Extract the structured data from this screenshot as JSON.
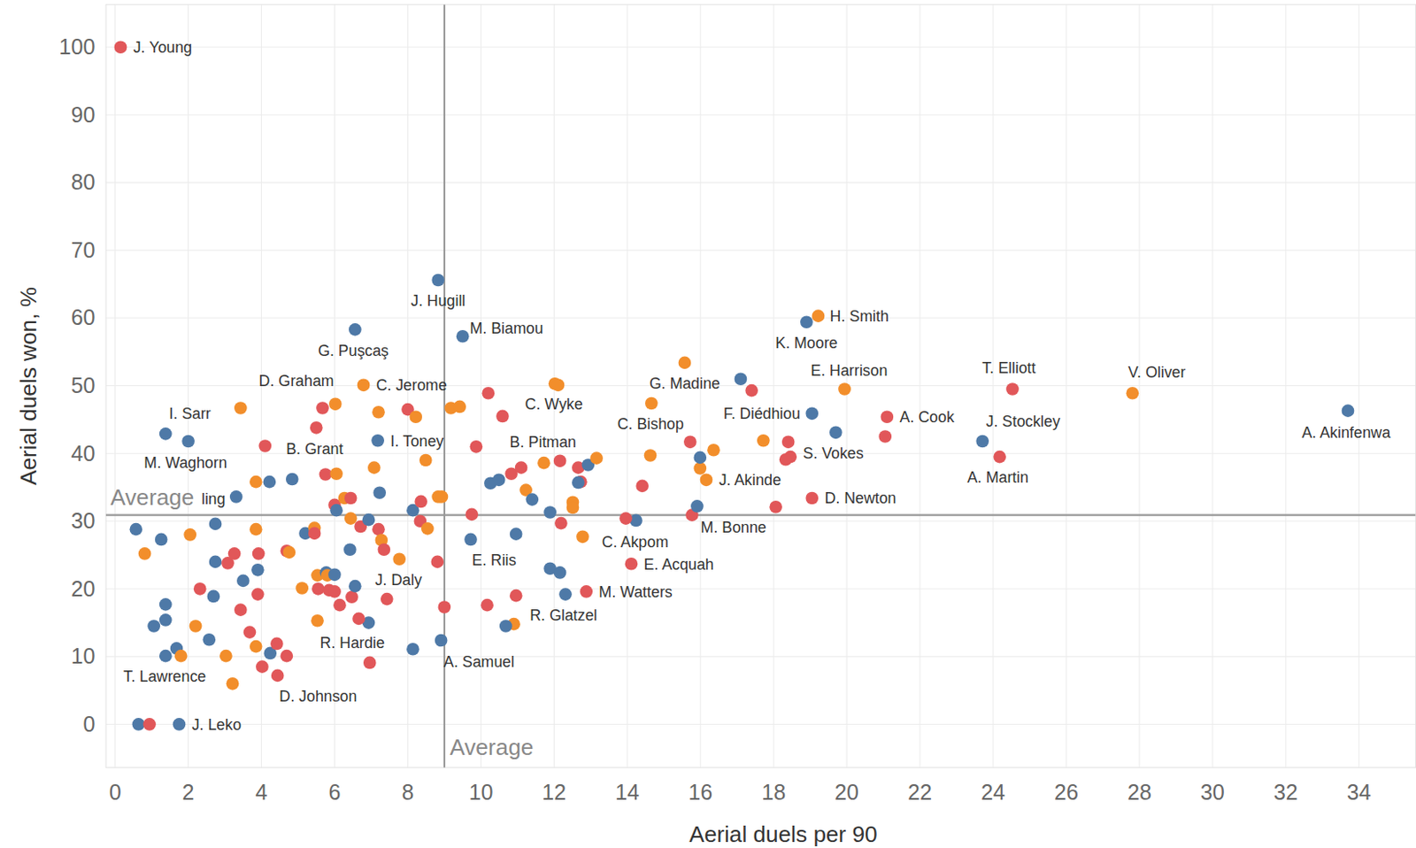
{
  "chart_data": {
    "type": "scatter",
    "x_label": "Aerial duels per 90",
    "y_label": "Aerial duels won, %",
    "xlim": [
      -0.25,
      35.55
    ],
    "ylim": [
      -6.4,
      106.3
    ],
    "xticks": [
      0,
      2,
      4,
      6,
      8,
      10,
      12,
      14,
      16,
      18,
      20,
      22,
      24,
      26,
      28,
      30,
      32,
      34
    ],
    "yticks": [
      0,
      10,
      20,
      30,
      40,
      50,
      60,
      70,
      80,
      90,
      100
    ],
    "grid": true,
    "marker": "circle",
    "reference_lines": [
      {
        "axis": "x",
        "value": 9.0,
        "label": "Average"
      },
      {
        "axis": "y",
        "value": 30.9,
        "label": "Average"
      }
    ],
    "x": [
      0.15,
      8.83,
      9.5,
      6.56,
      19.22,
      18.9,
      15.57,
      19.94,
      24.53,
      27.81,
      33.7,
      19.05,
      21.1,
      23.71,
      24.18,
      18.46,
      19.05,
      16.16,
      15.77,
      14.24,
      14.11,
      12.88,
      10.9,
      8.91,
      9.72,
      12.02,
      14.66,
      11.72,
      7.18,
      6.79,
      5.67,
      5.75,
      1.38,
      2.0,
      3.31,
      7.77,
      6.93,
      4.44,
      1.38,
      1.75,
      0.57,
      0.81,
      1.26,
      1.38,
      1.38,
      1.06,
      1.68,
      1.8,
      0.64,
      0.94,
      2.05,
      2.32,
      2.69,
      2.2,
      2.57,
      2.74,
      2.74,
      3.08,
      3.26,
      3.5,
      3.03,
      3.21,
      3.43,
      3.68,
      3.43,
      3.85,
      3.85,
      3.9,
      3.9,
      3.92,
      3.85,
      4.02,
      4.1,
      4.22,
      4.24,
      4.42,
      4.69,
      4.69,
      4.76,
      4.84,
      5.11,
      5.2,
      5.45,
      5.45,
      5.53,
      5.55,
      5.53,
      5.5,
      5.77,
      5.8,
      5.85,
      6.0,
      6.0,
      6.14,
      6.0,
      6.05,
      6.02,
      6.05,
      6.27,
      6.44,
      6.44,
      6.42,
      6.47,
      6.71,
      6.66,
      6.56,
      6.93,
      7.08,
      7.23,
      7.2,
      7.2,
      7.28,
      7.35,
      7.43,
      6.96,
      8.14,
      8.0,
      8.22,
      8.36,
      8.34,
      8.49,
      8.54,
      8.83,
      8.93,
      8.81,
      8.14,
      9.0,
      9.18,
      9.42,
      9.75,
      9.87,
      10.2,
      10.26,
      10.49,
      10.59,
      10.83,
      11.1,
      10.96,
      10.17,
      10.96,
      11.23,
      11.4,
      11.89,
      12.19,
      11.89,
      12.16,
      12.31,
      12.11,
      12.16,
      12.66,
      12.93,
      12.73,
      12.66,
      12.51,
      12.51,
      13.16,
      12.78,
      14.41,
      14.63,
      15.72,
      16.36,
      15.99,
      15.99,
      15.91,
      18.06,
      17.72,
      18.4,
      19.7,
      21.05,
      10.68,
      13.96,
      18.33,
      17.1,
      17.4
    ],
    "values": [
      100,
      65.6,
      57.3,
      58.3,
      60.3,
      59.4,
      53.4,
      49.5,
      49.5,
      48.9,
      46.3,
      45.9,
      45.4,
      41.8,
      39.5,
      39.5,
      33.4,
      36.1,
      30.9,
      30.1,
      23.7,
      19.6,
      14.8,
      12.4,
      27.3,
      50.3,
      47.4,
      38.6,
      41.9,
      50.1,
      46.7,
      36.9,
      42.9,
      41.8,
      33.6,
      24.4,
      15.0,
      7.2,
      10.1,
      0,
      28.8,
      25.2,
      27.3,
      17.7,
      15.4,
      14.5,
      11.2,
      10.1,
      0,
      0,
      28.0,
      20.0,
      18.9,
      14.5,
      12.5,
      29.6,
      24.0,
      23.8,
      25.2,
      21.2,
      10.1,
      6.0,
      16.9,
      13.6,
      46.7,
      35.8,
      28.8,
      22.8,
      19.2,
      25.2,
      11.5,
      8.5,
      41.1,
      35.8,
      10.5,
      11.9,
      10.1,
      25.6,
      25.4,
      36.2,
      20.1,
      28.2,
      29.0,
      28.2,
      22.0,
      20.0,
      15.3,
      43.8,
      22.4,
      22.0,
      19.8,
      22.1,
      19.6,
      17.6,
      32.4,
      31.6,
      47.3,
      37.0,
      33.4,
      33.4,
      30.4,
      25.8,
      18.8,
      29.2,
      15.6,
      20.4,
      30.2,
      37.9,
      34.2,
      28.8,
      46.1,
      27.2,
      25.8,
      18.5,
      9.1,
      31.6,
      46.5,
      45.4,
      32.9,
      30.0,
      39.0,
      28.9,
      33.6,
      33.6,
      24.0,
      11.1,
      17.3,
      46.7,
      46.9,
      31.0,
      41.0,
      48.9,
      35.6,
      36.1,
      45.5,
      37.0,
      37.9,
      28.1,
      17.6,
      19.0,
      34.6,
      33.2,
      31.3,
      29.7,
      23.0,
      22.4,
      19.2,
      50.1,
      38.9,
      37.9,
      38.3,
      35.8,
      35.7,
      32.8,
      32.0,
      39.3,
      27.7,
      35.2,
      39.7,
      41.7,
      40.5,
      37.8,
      39.4,
      32.2,
      32.1,
      41.9,
      41.7,
      43.1,
      42.5,
      14.5,
      30.4,
      39.1,
      51.0,
      49.3
    ],
    "colors": [
      "#e15759",
      "#4e79a7",
      "#4e79a7",
      "#4e79a7",
      "#f28e2b",
      "#4e79a7",
      "#f28e2b",
      "#f28e2b",
      "#e15759",
      "#f28e2b",
      "#4e79a7",
      "#4e79a7",
      "#e15759",
      "#4e79a7",
      "#e15759",
      "#e15759",
      "#e15759",
      "#f28e2b",
      "#e15759",
      "#4e79a7",
      "#e15759",
      "#e15759",
      "#f28e2b",
      "#4e79a7",
      "#4e79a7",
      "#f28e2b",
      "#f28e2b",
      "#f28e2b",
      "#4e79a7",
      "#f28e2b",
      "#e15759",
      "#e15759",
      "#4e79a7",
      "#4e79a7",
      "#4e79a7",
      "#f28e2b",
      "#4e79a7",
      "#e15759",
      "#4e79a7",
      "#4e79a7",
      "#4e79a7",
      "#f28e2b",
      "#4e79a7",
      "#4e79a7",
      "#4e79a7",
      "#4e79a7",
      "#4e79a7",
      "#f28e2b",
      "#4e79a7",
      "#e15759",
      "#f28e2b",
      "#e15759",
      "#4e79a7",
      "#f28e2b",
      "#4e79a7",
      "#4e79a7",
      "#4e79a7",
      "#e15759",
      "#e15759",
      "#4e79a7",
      "#f28e2b",
      "#f28e2b",
      "#e15759",
      "#e15759",
      "#f28e2b",
      "#f28e2b",
      "#f28e2b",
      "#4e79a7",
      "#e15759",
      "#e15759",
      "#f28e2b",
      "#e15759",
      "#e15759",
      "#4e79a7",
      "#4e79a7",
      "#e15759",
      "#e15759",
      "#e15759",
      "#f28e2b",
      "#4e79a7",
      "#f28e2b",
      "#4e79a7",
      "#f28e2b",
      "#e15759",
      "#f28e2b",
      "#e15759",
      "#f28e2b",
      "#e15759",
      "#4e79a7",
      "#f28e2b",
      "#e15759",
      "#4e79a7",
      "#e15759",
      "#e15759",
      "#e15759",
      "#4e79a7",
      "#f28e2b",
      "#f28e2b",
      "#f28e2b",
      "#e15759",
      "#f28e2b",
      "#4e79a7",
      "#e15759",
      "#e15759",
      "#e15759",
      "#4e79a7",
      "#4e79a7",
      "#f28e2b",
      "#4e79a7",
      "#e15759",
      "#f28e2b",
      "#f28e2b",
      "#e15759",
      "#e15759",
      "#e15759",
      "#4e79a7",
      "#e15759",
      "#f28e2b",
      "#e15759",
      "#e15759",
      "#f28e2b",
      "#f28e2b",
      "#f28e2b",
      "#f28e2b",
      "#e15759",
      "#4e79a7",
      "#e15759",
      "#f28e2b",
      "#f28e2b",
      "#e15759",
      "#e15759",
      "#e15759",
      "#4e79a7",
      "#4e79a7",
      "#e15759",
      "#e15759",
      "#e15759",
      "#4e79a7",
      "#e15759",
      "#e15759",
      "#f28e2b",
      "#4e79a7",
      "#4e79a7",
      "#e15759",
      "#4e79a7",
      "#4e79a7",
      "#4e79a7",
      "#f28e2b",
      "#e15759",
      "#e15759",
      "#4e79a7",
      "#e15759",
      "#4e79a7",
      "#f28e2b",
      "#f28e2b",
      "#f28e2b",
      "#f28e2b",
      "#e15759",
      "#f28e2b",
      "#e15759",
      "#f28e2b",
      "#f28e2b",
      "#4e79a7",
      "#4e79a7",
      "#e15759",
      "#f28e2b",
      "#e15759",
      "#4e79a7",
      "#e15759",
      "#4e79a7",
      "#e15759",
      "#e15759",
      "#4e79a7",
      "#e15759"
    ],
    "labels": [
      "J. Young",
      "J. Hugill",
      "M. Biamou",
      "G. Puşcaş",
      "H. Smith",
      "K. Moore",
      "G. Madine",
      "E. Harrison",
      "T. Elliott",
      "V. Oliver",
      "A. Akinfenwa",
      "F. Diédhiou",
      "A. Cook",
      "J. Stockley",
      "A. Martin",
      "S. Vokes",
      "D. Newton",
      "J. Akinde",
      "M. Bonne",
      "C. Akpom",
      "E. Acquah",
      "M. Watters",
      "R. Glatzel",
      "A. Samuel",
      "E. Riis",
      "C. Wyke",
      "C. Bishop",
      "B. Pitman",
      "I. Toney",
      "C. Jerome",
      "D. Graham",
      "B. Grant",
      "I. Sarr",
      "M. Waghorn",
      "ling",
      "J. Daly",
      "R. Hardie",
      "D. Johnson",
      "T. Lawrence",
      "J. Leko",
      null,
      null,
      null,
      null,
      null,
      null,
      null,
      null,
      null,
      null,
      null,
      null,
      null,
      null,
      null,
      null,
      null,
      null,
      null,
      null,
      null,
      null,
      null,
      null,
      null,
      null,
      null,
      null,
      null,
      null,
      null,
      null,
      null,
      null,
      null,
      null,
      null,
      null,
      null,
      null,
      null,
      null,
      null,
      null,
      null,
      null,
      null,
      null,
      null,
      null,
      null,
      null,
      null,
      null,
      null,
      null,
      null,
      null,
      null,
      null,
      null,
      null,
      null,
      null,
      null,
      null,
      null,
      null,
      null,
      null,
      null,
      null,
      null,
      null,
      null,
      null,
      null,
      null,
      null,
      null,
      null,
      null,
      null,
      null,
      null,
      null,
      null,
      null,
      null,
      null,
      null,
      null,
      null,
      null,
      null,
      null,
      null,
      null,
      null,
      null,
      null,
      null,
      null,
      null,
      null,
      null,
      null,
      null,
      null,
      null,
      null,
      null,
      null,
      null,
      null,
      null,
      null,
      null,
      null,
      null,
      null,
      null,
      null,
      null,
      null,
      null,
      null,
      null,
      null,
      null,
      null,
      null,
      null,
      null,
      null,
      null
    ]
  }
}
